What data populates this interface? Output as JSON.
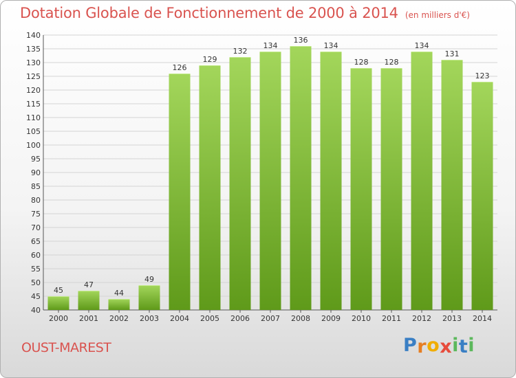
{
  "header": {
    "title": "Dotation Globale de Fonctionnement de 2000 à 2014",
    "unit": "(en milliers d'€)"
  },
  "footer": {
    "commune": "OUST-MAREST",
    "logo_letters": [
      "P",
      "r",
      "o",
      "x",
      "i",
      "t",
      "i"
    ]
  },
  "colors": {
    "title": "#d9534f",
    "bar_top": "#a3d65b",
    "bar_bottom": "#5f9a1a",
    "logo": [
      "#3a7fc4",
      "#e67e22",
      "#f0ad00",
      "#e74c3c",
      "#5cb85c",
      "#3a7fc4",
      "#5cb85c"
    ]
  },
  "chart_data": {
    "type": "bar",
    "title": "Dotation Globale de Fonctionnement de 2000 à 2014",
    "subtitle": "(en milliers d'€)",
    "categories": [
      "2000",
      "2001",
      "2002",
      "2003",
      "2004",
      "2005",
      "2006",
      "2007",
      "2008",
      "2009",
      "2010",
      "2011",
      "2012",
      "2013",
      "2014"
    ],
    "values": [
      45,
      47,
      44,
      49,
      126,
      129,
      132,
      134,
      136,
      134,
      128,
      128,
      134,
      131,
      123
    ],
    "ylim": [
      40,
      140
    ],
    "yticks": [
      40,
      45,
      50,
      55,
      60,
      65,
      70,
      75,
      80,
      85,
      90,
      95,
      100,
      105,
      110,
      115,
      120,
      125,
      130,
      135,
      140
    ],
    "grid": true,
    "legend": "none"
  }
}
